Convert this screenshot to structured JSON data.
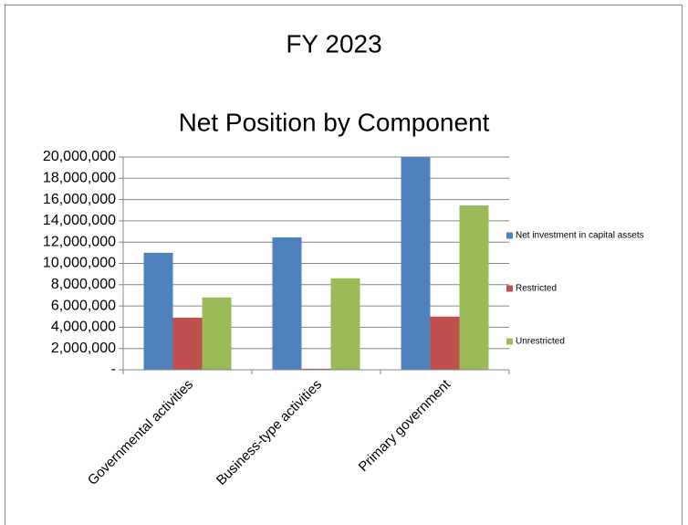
{
  "chart_data": {
    "type": "bar",
    "title": "FY 2023",
    "subtitle": "Net Position by Component",
    "categories": [
      "Governmental activities",
      "Business-type activities",
      "Primary government"
    ],
    "series": [
      {
        "name": "Net investment in capital assets",
        "color": "#4f81bd",
        "values": [
          11000000,
          12450000,
          20000000
        ]
      },
      {
        "name": "Restricted",
        "color": "#c0504d",
        "values": [
          4900000,
          100000,
          5000000
        ]
      },
      {
        "name": "Unrestricted",
        "color": "#9bbb59",
        "values": [
          6800000,
          8600000,
          15450000
        ]
      }
    ],
    "ylim": [
      0,
      20000000
    ],
    "yticks": [
      {
        "value": 0,
        "label": "-"
      },
      {
        "value": 2000000,
        "label": "2,000,000"
      },
      {
        "value": 4000000,
        "label": "4,000,000"
      },
      {
        "value": 6000000,
        "label": "6,000,000"
      },
      {
        "value": 8000000,
        "label": "8,000,000"
      },
      {
        "value": 10000000,
        "label": "10,000,000"
      },
      {
        "value": 12000000,
        "label": "12,000,000"
      },
      {
        "value": 14000000,
        "label": "14,000,000"
      },
      {
        "value": 16000000,
        "label": "16,000,000"
      },
      {
        "value": 18000000,
        "label": "18,000,000"
      },
      {
        "value": 20000000,
        "label": "20,000,000"
      }
    ],
    "grid": true,
    "legend": "right"
  }
}
